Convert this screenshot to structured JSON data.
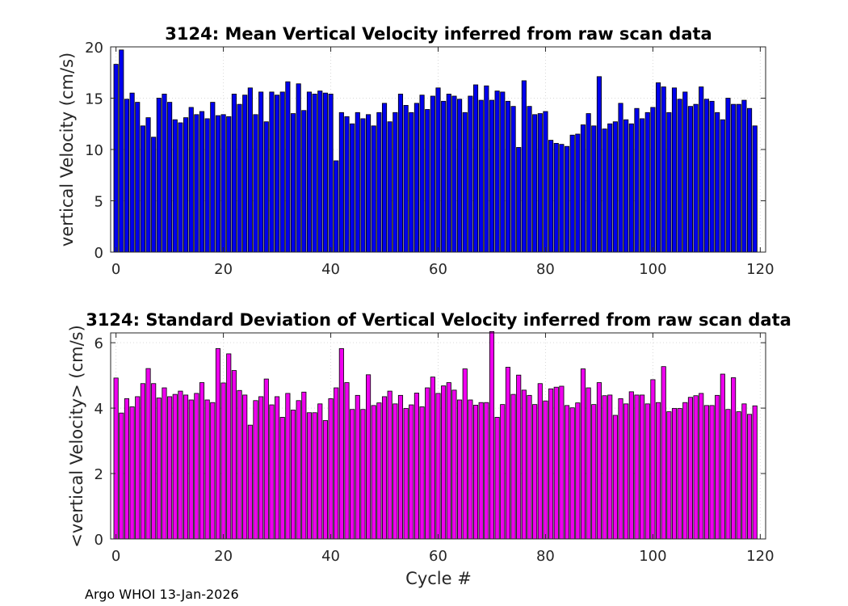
{
  "chart_data": [
    {
      "type": "bar",
      "title": "3124: Mean Vertical Velocity inferred from raw scan data",
      "xlabel": "",
      "ylabel": "vertical Velocity (cm/s)",
      "xlim": [
        -1,
        121
      ],
      "ylim": [
        0,
        20
      ],
      "xticks": [
        0,
        20,
        40,
        60,
        80,
        100,
        120
      ],
      "yticks": [
        0,
        5,
        10,
        15,
        20
      ],
      "grid": true,
      "color": "#0000ee",
      "x_start": 0,
      "values": [
        18.3,
        19.7,
        14.9,
        15.5,
        14.6,
        12.3,
        13.1,
        11.2,
        15.0,
        15.4,
        14.6,
        12.9,
        12.6,
        13.1,
        14.1,
        13.4,
        13.7,
        13.0,
        14.6,
        13.3,
        13.4,
        13.2,
        15.4,
        14.4,
        15.3,
        16.0,
        13.4,
        15.6,
        12.7,
        15.6,
        15.3,
        15.6,
        16.6,
        13.5,
        16.4,
        13.8,
        15.6,
        15.4,
        15.7,
        15.5,
        15.4,
        8.9,
        13.6,
        13.2,
        12.5,
        13.6,
        13.0,
        13.4,
        12.3,
        13.6,
        14.5,
        12.7,
        13.6,
        15.4,
        14.3,
        13.6,
        14.5,
        15.3,
        13.9,
        15.2,
        16.0,
        14.7,
        15.4,
        15.2,
        14.9,
        13.6,
        15.2,
        16.3,
        14.8,
        16.2,
        14.8,
        15.7,
        15.6,
        14.7,
        14.2,
        10.2,
        16.7,
        14.2,
        13.4,
        13.5,
        13.7,
        10.9,
        10.6,
        10.5,
        10.3,
        11.4,
        11.5,
        12.4,
        13.5,
        12.3,
        17.1,
        12.0,
        12.5,
        12.7,
        14.5,
        12.9,
        12.5,
        14.0,
        13.0,
        13.6,
        14.1,
        16.5,
        16.1,
        13.6,
        16.0,
        14.9,
        15.6,
        14.2,
        14.4,
        16.1,
        14.9,
        14.7,
        13.6,
        12.9,
        15.0,
        14.4,
        14.4,
        14.8,
        14.0,
        12.3
      ]
    },
    {
      "type": "bar",
      "title": "3124: Standard Deviation of Vertical Velocity inferred from raw scan data",
      "xlabel": "Cycle #",
      "ylabel": "<vertical Velocity> (cm/s)",
      "xlim": [
        -1,
        121
      ],
      "ylim": [
        0,
        6.3
      ],
      "xticks": [
        0,
        20,
        40,
        60,
        80,
        100,
        120
      ],
      "yticks": [
        0,
        2,
        4,
        6
      ],
      "grid": true,
      "color": "#ee00ee",
      "x_start": 0,
      "values": [
        4.92,
        3.85,
        4.29,
        4.04,
        4.35,
        4.75,
        5.21,
        4.75,
        4.31,
        4.62,
        4.35,
        4.42,
        4.52,
        4.4,
        4.25,
        4.45,
        4.78,
        4.25,
        4.17,
        5.82,
        4.77,
        5.66,
        5.15,
        4.54,
        4.4,
        3.48,
        4.23,
        4.35,
        4.89,
        4.1,
        4.35,
        3.72,
        4.45,
        3.94,
        4.23,
        4.49,
        3.86,
        3.86,
        4.13,
        3.62,
        4.29,
        4.62,
        5.82,
        4.78,
        3.96,
        4.39,
        3.96,
        5.02,
        4.08,
        4.16,
        4.35,
        4.52,
        4.13,
        4.39,
        3.99,
        4.1,
        4.46,
        4.04,
        4.62,
        4.95,
        4.45,
        4.68,
        4.78,
        4.55,
        4.25,
        5.2,
        4.25,
        4.09,
        4.17,
        4.17,
        6.34,
        3.72,
        4.11,
        5.25,
        4.42,
        5.01,
        4.55,
        4.39,
        4.11,
        4.75,
        4.22,
        4.59,
        4.64,
        4.67,
        4.08,
        4.01,
        4.16,
        5.2,
        4.62,
        4.11,
        4.78,
        4.38,
        4.4,
        3.78,
        4.29,
        4.13,
        4.5,
        4.4,
        4.4,
        4.13,
        4.87,
        4.17,
        5.27,
        3.89,
        3.99,
        3.99,
        4.17,
        4.33,
        4.38,
        4.45,
        4.08,
        4.08,
        4.39,
        5.04,
        3.96,
        4.93,
        3.89,
        4.13,
        3.81,
        4.07
      ]
    }
  ],
  "footer": "Argo WHOI 13-Jan-2026"
}
